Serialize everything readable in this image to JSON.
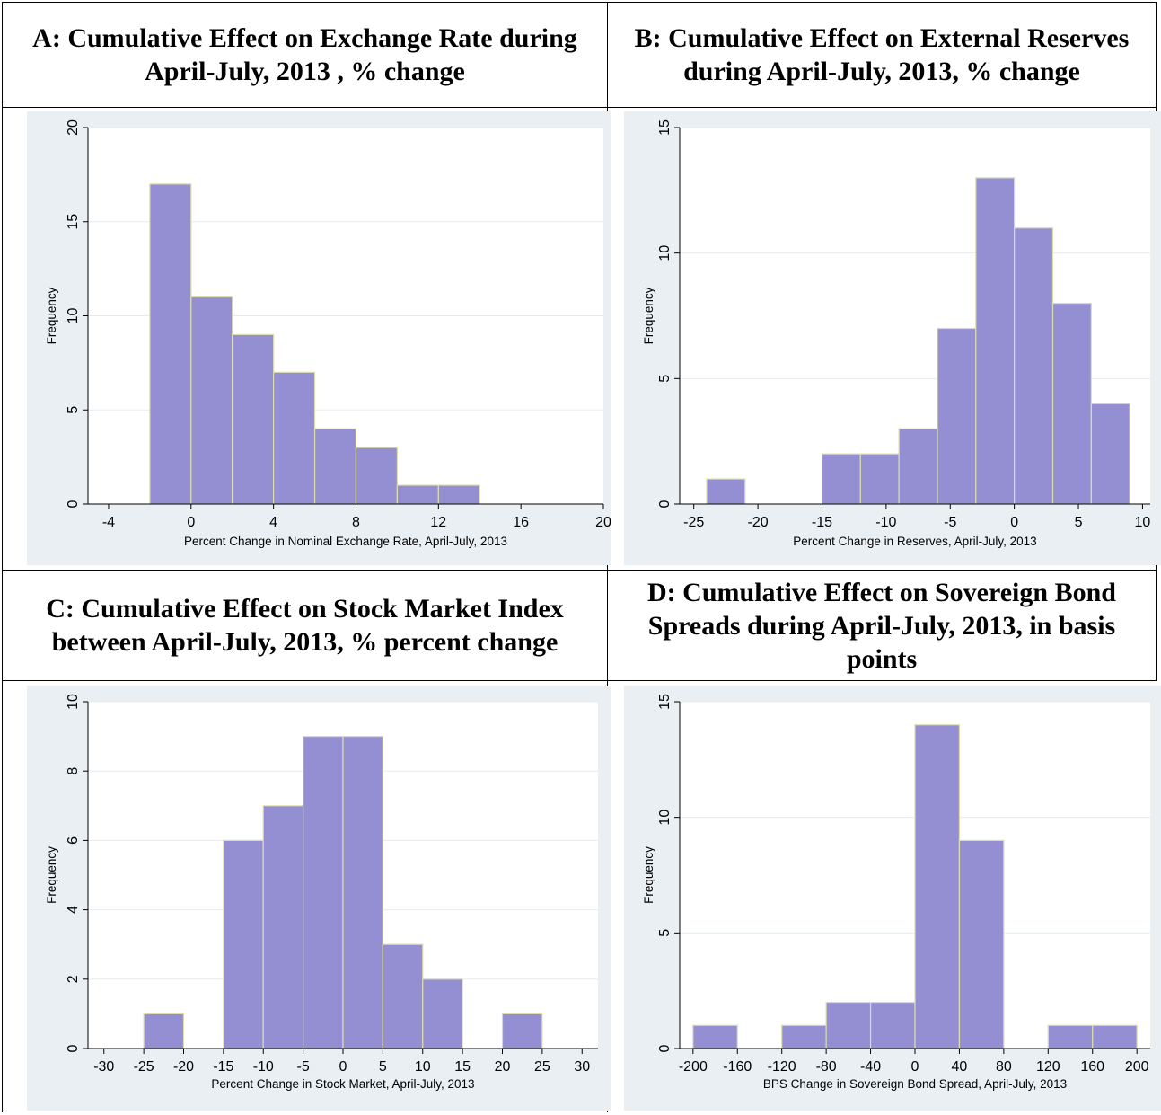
{
  "panels": [
    {
      "title": "A: Cumulative Effect on Exchange Rate during April-July, 2013 , % change",
      "chart_data": {
        "type": "bar",
        "xlabel": "Percent Change in Nominal Exchange Rate, April-July, 2013",
        "ylabel": "Frequency",
        "xlim": [
          -5,
          20
        ],
        "ylim": [
          0,
          20
        ],
        "xticks": [
          -4,
          0,
          4,
          8,
          12,
          16,
          20
        ],
        "yticks": [
          0,
          5,
          10,
          15,
          20
        ],
        "bins": [
          {
            "x0": -2,
            "x1": 0,
            "count": 17
          },
          {
            "x0": 0,
            "x1": 2,
            "count": 11
          },
          {
            "x0": 2,
            "x1": 4,
            "count": 9
          },
          {
            "x0": 4,
            "x1": 6,
            "count": 7
          },
          {
            "x0": 6,
            "x1": 8,
            "count": 4
          },
          {
            "x0": 8,
            "x1": 10,
            "count": 3
          },
          {
            "x0": 10,
            "x1": 12,
            "count": 1
          },
          {
            "x0": 12,
            "x1": 14,
            "count": 1
          }
        ],
        "grid": true
      }
    },
    {
      "title": "B: Cumulative Effect on External Reserves during April-July, 2013, % change",
      "chart_data": {
        "type": "bar",
        "xlabel": "Percent Change in Reserves, April-July, 2013",
        "ylabel": "Frequency",
        "xlim": [
          -26.1,
          10.6
        ],
        "ylim": [
          0,
          15
        ],
        "xticks": [
          -25,
          -20,
          -15,
          -10,
          -5,
          0,
          5,
          10
        ],
        "yticks": [
          0,
          5,
          10,
          15
        ],
        "bins": [
          {
            "x0": -24,
            "x1": -21,
            "count": 1
          },
          {
            "x0": -15,
            "x1": -12,
            "count": 2
          },
          {
            "x0": -12,
            "x1": -9,
            "count": 2
          },
          {
            "x0": -9,
            "x1": -6,
            "count": 3
          },
          {
            "x0": -6,
            "x1": -3,
            "count": 7
          },
          {
            "x0": -3,
            "x1": 0,
            "count": 13
          },
          {
            "x0": 0,
            "x1": 3,
            "count": 11
          },
          {
            "x0": 3,
            "x1": 6,
            "count": 8
          },
          {
            "x0": 6,
            "x1": 9,
            "count": 4
          }
        ],
        "grid": true
      }
    },
    {
      "title": "C: Cumulative Effect on Stock Market Index between April-July, 2013, % percent change",
      "chart_data": {
        "type": "bar",
        "xlabel": "Percent Change in Stock Market, April-July, 2013",
        "ylabel": "Frequency",
        "xlim": [
          -32,
          32
        ],
        "ylim": [
          0,
          10
        ],
        "xticks": [
          -30,
          -25,
          -20,
          -15,
          -10,
          -5,
          0,
          5,
          10,
          15,
          20,
          25,
          30
        ],
        "yticks": [
          0,
          2,
          4,
          6,
          8,
          10
        ],
        "bins": [
          {
            "x0": -25,
            "x1": -20,
            "count": 1
          },
          {
            "x0": -15,
            "x1": -10,
            "count": 6
          },
          {
            "x0": -10,
            "x1": -5,
            "count": 7
          },
          {
            "x0": -5,
            "x1": 0,
            "count": 9
          },
          {
            "x0": 0,
            "x1": 5,
            "count": 9
          },
          {
            "x0": 5,
            "x1": 10,
            "count": 3
          },
          {
            "x0": 10,
            "x1": 15,
            "count": 2
          },
          {
            "x0": 20,
            "x1": 25,
            "count": 1
          }
        ],
        "grid": true
      }
    },
    {
      "title": "D: Cumulative Effect on Sovereign Bond Spreads during April-July, 2013, in basis points",
      "chart_data": {
        "type": "bar",
        "xlabel": "BPS Change in Sovereign Bond Spread, April-July, 2013",
        "ylabel": "Frequency",
        "xlim": [
          -212,
          212
        ],
        "ylim": [
          0,
          15
        ],
        "xticks": [
          -200,
          -160,
          -120,
          -80,
          -40,
          0,
          40,
          80,
          120,
          160,
          200
        ],
        "yticks": [
          0,
          5,
          10,
          15
        ],
        "bins": [
          {
            "x0": -200,
            "x1": -160,
            "count": 1
          },
          {
            "x0": -120,
            "x1": -80,
            "count": 1
          },
          {
            "x0": -80,
            "x1": -40,
            "count": 2
          },
          {
            "x0": -40,
            "x1": 0,
            "count": 2
          },
          {
            "x0": 0,
            "x1": 40,
            "count": 14
          },
          {
            "x0": 40,
            "x1": 80,
            "count": 9
          },
          {
            "x0": 120,
            "x1": 160,
            "count": 1
          },
          {
            "x0": 160,
            "x1": 200,
            "count": 1
          }
        ],
        "grid": true
      }
    }
  ],
  "colors": {
    "bar_fill": "#948fd3",
    "bar_stroke": "#dcdcb0",
    "plot_bg": "#ffffff",
    "outer_bg": "#e9eff3",
    "grid": "#e6ebee",
    "axis": "#000000"
  }
}
